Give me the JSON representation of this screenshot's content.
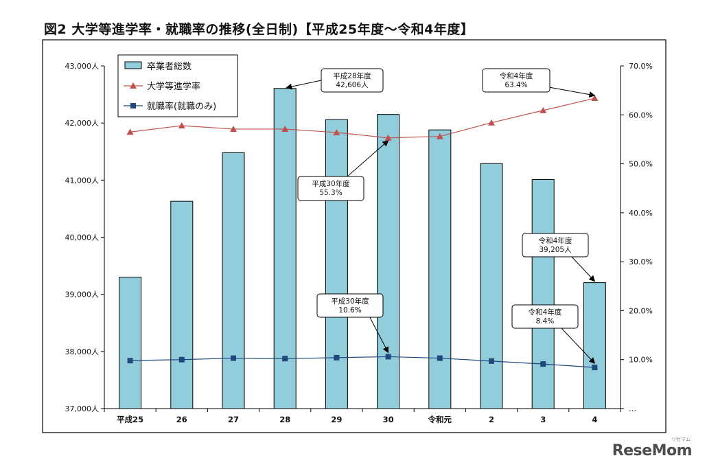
{
  "title": "図2 大学等進学率・就職率の推移(全日制)【平成25年度～令和4年度】",
  "watermark": {
    "brand": "ReseMom",
    "reading": "リセマム"
  },
  "chart_data": {
    "type": "bar+line",
    "categories": [
      "平成25",
      "26",
      "27",
      "28",
      "29",
      "30",
      "令和元",
      "2",
      "3",
      "4"
    ],
    "series": [
      {
        "name": "卒業者総数",
        "type": "bar",
        "axis": "left",
        "color": "#92cddc",
        "values": [
          39300,
          40630,
          41480,
          42606,
          42060,
          42150,
          41880,
          41290,
          41010,
          39205
        ]
      },
      {
        "name": "大学等進学率",
        "type": "line",
        "axis": "right",
        "color": "#c0504d",
        "marker": "triangle",
        "values": [
          56.5,
          57.8,
          57.1,
          57.1,
          56.4,
          55.3,
          55.6,
          58.4,
          60.9,
          63.4
        ]
      },
      {
        "name": "就職率(就職のみ)",
        "type": "line",
        "axis": "right",
        "color": "#1f497d",
        "marker": "square",
        "values": [
          9.8,
          10.0,
          10.3,
          10.2,
          10.4,
          10.6,
          10.3,
          9.7,
          9.1,
          8.4
        ]
      }
    ],
    "left_axis": {
      "min": 37000,
      "max": 43000,
      "step": 1000,
      "tick_labels": [
        "37,000人",
        "38,000人",
        "39,000人",
        "40,000人",
        "41,000人",
        "42,000人",
        "43,000人"
      ]
    },
    "right_axis": {
      "min": 0,
      "max": 70,
      "step": 10,
      "tick_labels": [
        "…",
        "10.0%",
        "20.0%",
        "30.0%",
        "40.0%",
        "50.0%",
        "60.0%",
        "70.0%"
      ]
    },
    "grid": false,
    "legend": "top-left",
    "annotations": [
      {
        "lines": [
          "平成28年度",
          "42,606人"
        ],
        "target_category": 3,
        "target_series": 0
      },
      {
        "lines": [
          "令和4年度",
          "63.4%"
        ],
        "target_category": 9,
        "target_series": 1
      },
      {
        "lines": [
          "平成30年度",
          "55.3%"
        ],
        "target_category": 5,
        "target_series": 1
      },
      {
        "lines": [
          "令和4年度",
          "39,205人"
        ],
        "target_category": 9,
        "target_series": 0
      },
      {
        "lines": [
          "平成30年度",
          "10.6%"
        ],
        "target_category": 5,
        "target_series": 2
      },
      {
        "lines": [
          "令和4年度",
          "8.4%"
        ],
        "target_category": 9,
        "target_series": 2
      }
    ]
  }
}
